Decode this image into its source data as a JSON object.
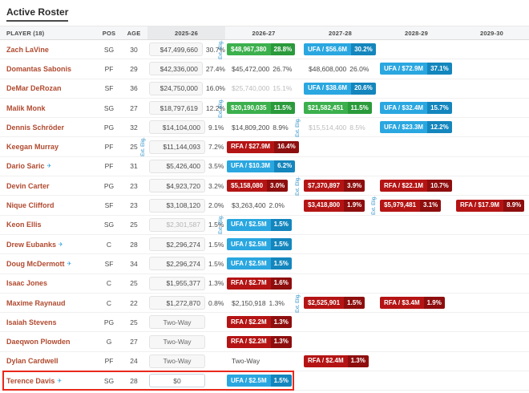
{
  "page": {
    "title": "Active Roster"
  },
  "labels": {
    "ext_elig": "Ext. Elig.",
    "icon_glyph": "✈"
  },
  "colors": {
    "player_link": "#b04a2f",
    "green_badge": "#3cb04d",
    "green_badge_dark": "#2a9a3b",
    "blue_badge": "#2aa7e0",
    "blue_badge_dark": "#1486bd",
    "red_badge": "#b51414",
    "red_badge_dark": "#8e0e0e",
    "ext_elig_text": "#1b87c4",
    "highlight_border": "#e8291c"
  },
  "table": {
    "columns": [
      {
        "key": "player",
        "label": "PLAYER (18)"
      },
      {
        "key": "pos",
        "label": "POS"
      },
      {
        "key": "age",
        "label": "AGE"
      },
      {
        "key": "y2025",
        "label": "2025-26"
      },
      {
        "key": "y2026",
        "label": "2026-27"
      },
      {
        "key": "y2027",
        "label": "2027-28"
      },
      {
        "key": "y2028",
        "label": "2028-29"
      },
      {
        "key": "y2029",
        "label": "2029-30"
      }
    ],
    "rows": [
      {
        "name": "Zach LaVine",
        "icon": false,
        "pos": "SG",
        "age": 30,
        "highlight": false,
        "years": [
          {
            "type": "box",
            "value": "$47,499,660",
            "pct": "30.7%"
          },
          {
            "type": "green",
            "value": "$48,967,380",
            "pct": "28.8%",
            "ext": true
          },
          {
            "type": "blue",
            "value": "UFA / $56.6M",
            "pct": "30.2%"
          },
          {
            "type": "empty"
          },
          {
            "type": "empty"
          }
        ]
      },
      {
        "name": "Domantas Sabonis",
        "icon": false,
        "pos": "PF",
        "age": 29,
        "highlight": false,
        "years": [
          {
            "type": "box",
            "value": "$42,336,000",
            "pct": "27.4%"
          },
          {
            "type": "plain",
            "value": "$45,472,000",
            "pct": "26.7%"
          },
          {
            "type": "plain",
            "value": "$48,608,000",
            "pct": "26.0%"
          },
          {
            "type": "blue",
            "value": "UFA / $72.9M",
            "pct": "37.1%"
          },
          {
            "type": "empty"
          }
        ]
      },
      {
        "name": "DeMar DeRozan",
        "icon": false,
        "pos": "SF",
        "age": 36,
        "highlight": false,
        "years": [
          {
            "type": "box",
            "value": "$24,750,000",
            "pct": "16.0%"
          },
          {
            "type": "plaingray",
            "value": "$25,740,000",
            "pct": "15.1%"
          },
          {
            "type": "blue",
            "value": "UFA / $38.6M",
            "pct": "20.6%"
          },
          {
            "type": "empty"
          },
          {
            "type": "empty"
          }
        ]
      },
      {
        "name": "Malik Monk",
        "icon": false,
        "pos": "SG",
        "age": 27,
        "highlight": false,
        "years": [
          {
            "type": "box",
            "value": "$18,797,619",
            "pct": "12.2%"
          },
          {
            "type": "green",
            "value": "$20,190,035",
            "pct": "11.5%",
            "ext": true
          },
          {
            "type": "green",
            "value": "$21,582,451",
            "pct": "11.5%"
          },
          {
            "type": "blue",
            "value": "UFA / $32.4M",
            "pct": "15.7%"
          },
          {
            "type": "empty"
          }
        ]
      },
      {
        "name": "Dennis Schröder",
        "icon": false,
        "pos": "PG",
        "age": 32,
        "highlight": false,
        "years": [
          {
            "type": "box",
            "value": "$14,104,000",
            "pct": "9.1%"
          },
          {
            "type": "plain",
            "value": "$14,809,200",
            "pct": "8.9%"
          },
          {
            "type": "plaingray",
            "value": "$15,514,400",
            "pct": "8.5%",
            "ext": true
          },
          {
            "type": "blue",
            "value": "UFA / $23.3M",
            "pct": "12.2%"
          },
          {
            "type": "empty"
          }
        ]
      },
      {
        "name": "Keegan Murray",
        "icon": false,
        "pos": "PF",
        "age": 25,
        "highlight": false,
        "years": [
          {
            "type": "box",
            "value": "$11,144,093",
            "pct": "7.2%",
            "ext": true
          },
          {
            "type": "red",
            "value": "RFA / $27.9M",
            "pct": "16.4%"
          },
          {
            "type": "empty"
          },
          {
            "type": "empty"
          },
          {
            "type": "empty"
          }
        ]
      },
      {
        "name": "Dario Saric",
        "icon": true,
        "pos": "PF",
        "age": 31,
        "highlight": false,
        "years": [
          {
            "type": "box",
            "value": "$5,426,400",
            "pct": "3.5%"
          },
          {
            "type": "blue",
            "value": "UFA / $10.3M",
            "pct": "6.2%"
          },
          {
            "type": "empty"
          },
          {
            "type": "empty"
          },
          {
            "type": "empty"
          }
        ]
      },
      {
        "name": "Devin Carter",
        "icon": false,
        "pos": "PG",
        "age": 23,
        "highlight": false,
        "years": [
          {
            "type": "box",
            "value": "$4,923,720",
            "pct": "3.2%"
          },
          {
            "type": "red",
            "value": "$5,158,080",
            "pct": "3.0%"
          },
          {
            "type": "red",
            "value": "$7,370,897",
            "pct": "3.9%",
            "ext": true
          },
          {
            "type": "red",
            "value": "RFA / $22.1M",
            "pct": "10.7%"
          },
          {
            "type": "empty"
          }
        ]
      },
      {
        "name": "Nique Clifford",
        "icon": false,
        "pos": "SF",
        "age": 23,
        "highlight": false,
        "years": [
          {
            "type": "box",
            "value": "$3,108,120",
            "pct": "2.0%"
          },
          {
            "type": "plain",
            "value": "$3,263,400",
            "pct": "2.0%"
          },
          {
            "type": "red",
            "value": "$3,418,800",
            "pct": "1.9%"
          },
          {
            "type": "red",
            "value": "$5,979,481",
            "pct": "3.1%",
            "ext": true
          },
          {
            "type": "red",
            "value": "RFA / $17.9M",
            "pct": "8.9%"
          }
        ]
      },
      {
        "name": "Keon Ellis",
        "icon": false,
        "pos": "SG",
        "age": 25,
        "highlight": false,
        "years": [
          {
            "type": "boxgray",
            "value": "$2,301,587",
            "pct": "1.5%"
          },
          {
            "type": "blue",
            "value": "UFA / $2.5M",
            "pct": "1.5%",
            "ext": true
          },
          {
            "type": "empty"
          },
          {
            "type": "empty"
          },
          {
            "type": "empty"
          }
        ]
      },
      {
        "name": "Drew Eubanks",
        "icon": true,
        "pos": "C",
        "age": 28,
        "highlight": false,
        "years": [
          {
            "type": "box",
            "value": "$2,296,274",
            "pct": "1.5%"
          },
          {
            "type": "blue",
            "value": "UFA / $2.5M",
            "pct": "1.5%"
          },
          {
            "type": "empty"
          },
          {
            "type": "empty"
          },
          {
            "type": "empty"
          }
        ]
      },
      {
        "name": "Doug McDermott",
        "icon": true,
        "pos": "SF",
        "age": 34,
        "highlight": false,
        "years": [
          {
            "type": "box",
            "value": "$2,296,274",
            "pct": "1.5%"
          },
          {
            "type": "blue",
            "value": "UFA / $2.5M",
            "pct": "1.5%"
          },
          {
            "type": "empty"
          },
          {
            "type": "empty"
          },
          {
            "type": "empty"
          }
        ]
      },
      {
        "name": "Isaac Jones",
        "icon": false,
        "pos": "C",
        "age": 25,
        "highlight": false,
        "years": [
          {
            "type": "box",
            "value": "$1,955,377",
            "pct": "1.3%"
          },
          {
            "type": "red",
            "value": "RFA / $2.7M",
            "pct": "1.6%"
          },
          {
            "type": "empty"
          },
          {
            "type": "empty"
          },
          {
            "type": "empty"
          }
        ]
      },
      {
        "name": "Maxime Raynaud",
        "icon": false,
        "pos": "C",
        "age": 22,
        "highlight": false,
        "years": [
          {
            "type": "box",
            "value": "$1,272,870",
            "pct": "0.8%"
          },
          {
            "type": "plain",
            "value": "$2,150,918",
            "pct": "1.3%"
          },
          {
            "type": "red",
            "value": "$2,525,901",
            "pct": "1.5%",
            "ext": true
          },
          {
            "type": "red",
            "value": "RFA / $3.4M",
            "pct": "1.9%"
          },
          {
            "type": "empty"
          }
        ]
      },
      {
        "name": "Isaiah Stevens",
        "icon": false,
        "pos": "PG",
        "age": 25,
        "highlight": false,
        "years": [
          {
            "type": "twoway",
            "value": "Two-Way",
            "pct": ""
          },
          {
            "type": "red",
            "value": "RFA / $2.2M",
            "pct": "1.3%"
          },
          {
            "type": "empty"
          },
          {
            "type": "empty"
          },
          {
            "type": "empty"
          }
        ]
      },
      {
        "name": "Daeqwon Plowden",
        "icon": false,
        "pos": "G",
        "age": 27,
        "highlight": false,
        "years": [
          {
            "type": "twoway",
            "value": "Two-Way",
            "pct": ""
          },
          {
            "type": "red",
            "value": "RFA / $2.2M",
            "pct": "1.3%"
          },
          {
            "type": "empty"
          },
          {
            "type": "empty"
          },
          {
            "type": "empty"
          }
        ]
      },
      {
        "name": "Dylan Cardwell",
        "icon": false,
        "pos": "PF",
        "age": 24,
        "highlight": false,
        "years": [
          {
            "type": "twoway",
            "value": "Two-Way",
            "pct": ""
          },
          {
            "type": "plain",
            "value": "Two-Way",
            "pct": ""
          },
          {
            "type": "red",
            "value": "RFA / $2.4M",
            "pct": "1.3%"
          },
          {
            "type": "empty"
          },
          {
            "type": "empty"
          }
        ]
      },
      {
        "name": "Terence Davis",
        "icon": true,
        "pos": "SG",
        "age": 28,
        "highlight": true,
        "years": [
          {
            "type": "input",
            "value": "$0",
            "pct": ""
          },
          {
            "type": "blue",
            "value": "UFA / $2.5M",
            "pct": "1.5%"
          },
          {
            "type": "empty"
          },
          {
            "type": "empty"
          },
          {
            "type": "empty"
          }
        ]
      }
    ]
  }
}
